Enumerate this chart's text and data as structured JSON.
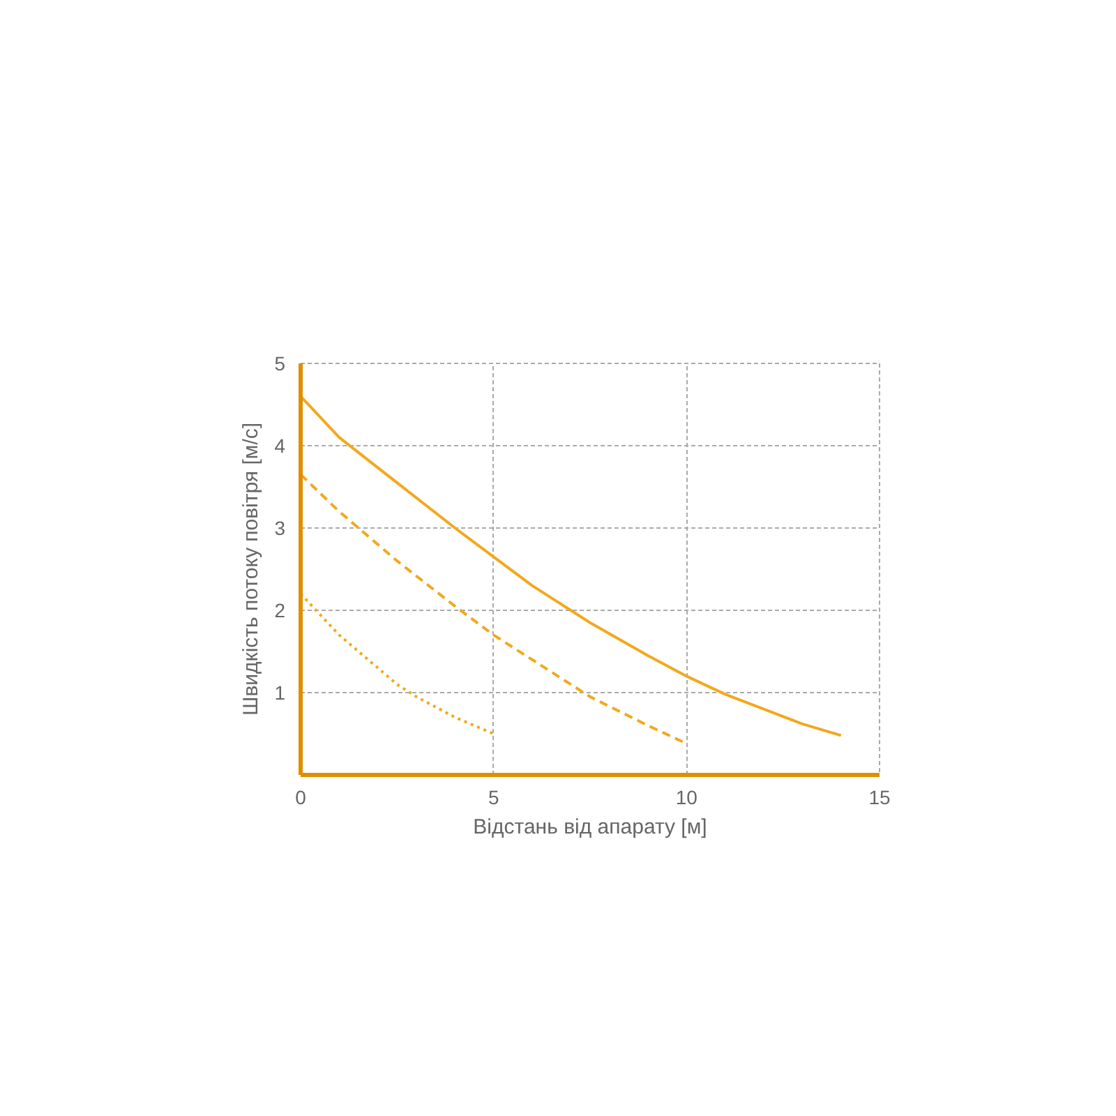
{
  "chart_data": {
    "type": "line",
    "xlabel": "Відстань від апарату [м]",
    "ylabel": "Швидкість потоку повітря [м/с]",
    "xlim": [
      0,
      15
    ],
    "ylim": [
      0,
      5
    ],
    "xticks": [
      0,
      5,
      10,
      15
    ],
    "yticks": [
      1,
      2,
      3,
      4,
      5
    ],
    "grid": true,
    "marker": "none",
    "series": [
      {
        "color": "#f2a81d",
        "line_style": "solid",
        "x": [
          0,
          1,
          2.5,
          4,
          5,
          6,
          7.5,
          9,
          10,
          11,
          12,
          13,
          14
        ],
        "values": [
          4.6,
          4.1,
          3.55,
          3.0,
          2.65,
          2.3,
          1.85,
          1.45,
          1.2,
          0.98,
          0.8,
          0.62,
          0.48
        ]
      },
      {
        "color": "#f2a81d",
        "line_style": "dashed",
        "x": [
          0,
          1,
          2.5,
          4,
          5,
          6,
          7.5,
          9,
          10
        ],
        "values": [
          3.65,
          3.2,
          2.6,
          2.05,
          1.7,
          1.4,
          0.95,
          0.6,
          0.38
        ]
      },
      {
        "color": "#f2a81d",
        "line_style": "dotted",
        "x": [
          0,
          1,
          2,
          2.5,
          3,
          4,
          5
        ],
        "values": [
          2.2,
          1.7,
          1.3,
          1.1,
          0.95,
          0.7,
          0.5
        ]
      }
    ]
  }
}
